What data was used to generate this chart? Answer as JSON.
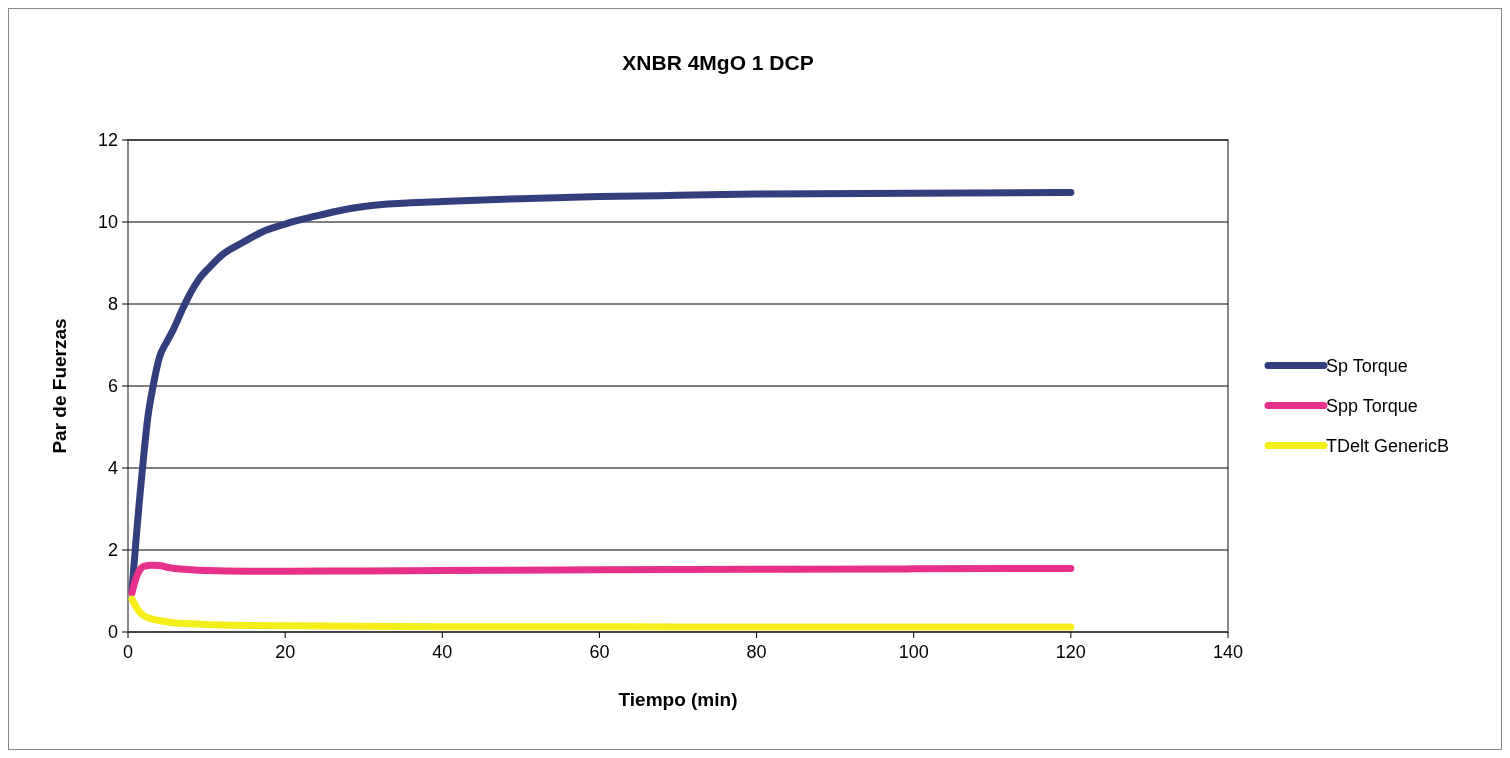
{
  "chart_data": {
    "type": "line",
    "title": "XNBR 4MgO 1 DCP",
    "xlabel": "Tiempo (min)",
    "ylabel": "Par de Fuerzas",
    "xlim": [
      0,
      140
    ],
    "xticks": [
      0,
      20,
      40,
      60,
      80,
      100,
      120,
      140
    ],
    "ylim": [
      0,
      12
    ],
    "yticks": [
      0,
      2,
      4,
      6,
      8,
      10,
      12
    ],
    "grid": "y",
    "legend": "right",
    "marker": "none",
    "line_style": "solid",
    "series": [
      {
        "name": "Sp Torque",
        "color": "#333f7c",
        "x": [
          0.5,
          1,
          1.5,
          1.9,
          2.5,
          3.2,
          4,
          5,
          5.7,
          7,
          7.9,
          9,
          10.4,
          12,
          14.6,
          17,
          20,
          24,
          27.5,
          32,
          40,
          50,
          60,
          70,
          80,
          100,
          120
        ],
        "values": [
          1.0,
          2.2,
          3.3,
          4.1,
          5.2,
          6.0,
          6.7,
          7.1,
          7.35,
          7.9,
          8.25,
          8.6,
          8.9,
          9.2,
          9.5,
          9.75,
          9.95,
          10.15,
          10.3,
          10.42,
          10.5,
          10.57,
          10.62,
          10.65,
          10.68,
          10.7,
          10.72
        ]
      },
      {
        "name": "Spp Torque",
        "color": "#e6308a",
        "x": [
          0.5,
          1,
          2,
          3,
          4,
          5,
          6,
          8,
          10,
          15,
          20,
          30,
          40,
          60,
          80,
          100,
          120
        ],
        "values": [
          0.95,
          1.3,
          1.6,
          1.63,
          1.62,
          1.58,
          1.55,
          1.52,
          1.5,
          1.48,
          1.48,
          1.49,
          1.5,
          1.52,
          1.53,
          1.54,
          1.55
        ]
      },
      {
        "name": "TDelt GenericB",
        "color": "#f5ee1a",
        "x": [
          0.5,
          1,
          1.5,
          2,
          3,
          4,
          6,
          8,
          10,
          15,
          20,
          40,
          60,
          80,
          100,
          120
        ],
        "values": [
          0.8,
          0.62,
          0.48,
          0.4,
          0.32,
          0.28,
          0.22,
          0.2,
          0.18,
          0.16,
          0.15,
          0.13,
          0.13,
          0.12,
          0.12,
          0.12
        ]
      }
    ]
  }
}
